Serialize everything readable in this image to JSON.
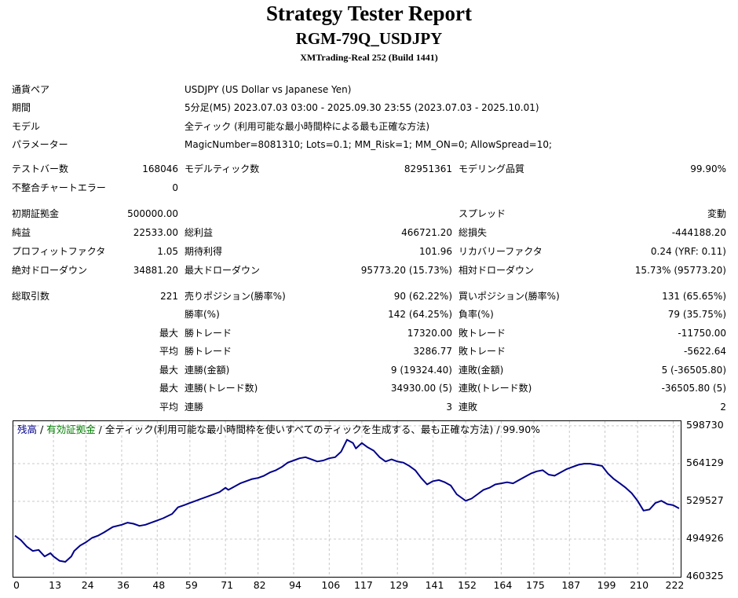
{
  "header": {
    "title": "Strategy Tester Report",
    "ea_name": "RGM-79Q_USDJPY",
    "server": "XMTrading-Real 252 (Build 1441)"
  },
  "settings": {
    "symbol_label": "通貨ペア",
    "symbol_value": "USDJPY (US Dollar vs Japanese Yen)",
    "period_label": "期間",
    "period_value": "5分足(M5) 2023.07.03 03:00 - 2025.09.30 23:55 (2023.07.03 - 2025.10.01)",
    "model_label": "モデル",
    "model_value": "全ティック (利用可能な最小時間枠による最も正確な方法)",
    "params_label": "パラメーター",
    "params_value": "MagicNumber=8081310; Lots=0.1; MM_Risk=1; MM_ON=0; AllowSpread=10;"
  },
  "stats": {
    "bars_label": "テストバー数",
    "bars_value": "168046",
    "ticks_label": "モデルティック数",
    "ticks_value": "82951361",
    "quality_label": "モデリング品質",
    "quality_value": "99.90%",
    "mismatch_label": "不整合チャートエラー",
    "mismatch_value": "0",
    "deposit_label": "初期証拠金",
    "deposit_value": "500000.00",
    "spread_label": "スプレッド",
    "spread_value": "変動",
    "net_label": "純益",
    "net_value": "22533.00",
    "gross_profit_label": "総利益",
    "gross_profit_value": "466721.20",
    "gross_loss_label": "総損失",
    "gross_loss_value": "-444188.20",
    "pf_label": "プロフィットファクタ",
    "pf_value": "1.05",
    "expected_label": "期待利得",
    "expected_value": "101.96",
    "recovery_label": "リカバリーファクタ",
    "recovery_value": "0.24 (YRF: 0.11)",
    "abs_dd_label": "絶対ドローダウン",
    "abs_dd_value": "34881.20",
    "max_dd_label": "最大ドローダウン",
    "max_dd_value": "95773.20 (15.73%)",
    "rel_dd_label": "相対ドローダウン",
    "rel_dd_value": "15.73% (95773.20)",
    "trades_label": "総取引数",
    "trades_value": "221",
    "short_label": "売りポジション(勝率%)",
    "short_value": "90 (62.22%)",
    "long_label": "買いポジション(勝率%)",
    "long_value": "131 (65.65%)",
    "win_rate_label": "勝率(%)",
    "win_rate_value": "142 (64.25%)",
    "loss_rate_label": "負率(%)",
    "loss_rate_value": "79 (35.75%)",
    "max_label": "最大",
    "avg_label": "平均",
    "win_trade_label": "勝トレード",
    "loss_trade_label": "敗トレード",
    "max_win_value": "17320.00",
    "max_loss_value": "-11750.00",
    "avg_win_value": "3286.77",
    "avg_loss_value": "-5622.64",
    "cons_win_amt_label": "連勝(金額)",
    "cons_win_amt_value": "9 (19324.40)",
    "cons_loss_amt_label": "連敗(金額)",
    "cons_loss_amt_value": "5 (-36505.80)",
    "cons_win_cnt_label": "連勝(トレード数)",
    "cons_win_cnt_value": "34930.00 (5)",
    "cons_loss_cnt_label": "連敗(トレード数)",
    "cons_loss_cnt_value": "-36505.80 (5)",
    "avg_cons_win_label": "連勝",
    "avg_cons_win_value": "3",
    "avg_cons_loss_label": "連敗",
    "avg_cons_loss_value": "2"
  },
  "legend": {
    "balance": "残高",
    "sep1": " / ",
    "equity": "有効証拠金",
    "rest": " / 全ティック(利用可能な最小時間枠を使いすべてのティックを生成する、最も正確な方法) / 99.90%"
  },
  "colors": {
    "balance": "#00008b",
    "equity": "#008000",
    "grid": "#c8c8c8"
  },
  "chart_data": {
    "type": "line",
    "series": [
      {
        "name": "残高",
        "x": [
          0,
          2,
          4,
          6,
          8,
          10,
          12,
          13,
          15,
          17,
          19,
          20,
          22,
          24,
          26,
          28,
          30,
          33,
          36,
          38,
          40,
          42,
          44,
          46,
          48,
          50,
          53,
          55,
          57,
          59,
          61,
          63,
          65,
          67,
          69,
          71,
          72,
          74,
          76,
          78,
          80,
          82,
          84,
          86,
          88,
          90,
          92,
          94,
          96,
          98,
          100,
          102,
          104,
          106,
          108,
          110,
          112,
          114,
          115,
          117,
          119,
          121,
          123,
          125,
          127,
          129,
          131,
          133,
          135,
          137,
          139,
          141,
          143,
          145,
          147,
          149,
          151,
          152,
          154,
          156,
          158,
          160,
          162,
          164,
          166,
          168,
          170,
          172,
          174,
          176,
          178,
          180,
          182,
          184,
          186,
          188,
          190,
          192,
          194,
          196,
          198,
          200,
          202,
          204,
          206,
          208,
          210,
          212,
          214,
          216,
          218,
          220,
          222,
          224
        ],
        "values": [
          498000,
          494000,
          488000,
          484000,
          485000,
          479000,
          482000,
          479000,
          475000,
          474000,
          479000,
          484000,
          489000,
          492000,
          496000,
          498000,
          501000,
          506000,
          508000,
          510000,
          509000,
          507000,
          508000,
          510000,
          512000,
          514000,
          518000,
          524000,
          526000,
          528000,
          530000,
          532000,
          534000,
          536000,
          538000,
          542000,
          540000,
          543000,
          546000,
          548000,
          550000,
          551000,
          553000,
          556000,
          558000,
          561000,
          565000,
          567000,
          569000,
          570000,
          568000,
          566000,
          567000,
          569000,
          570000,
          575000,
          586000,
          583000,
          578000,
          583000,
          579000,
          576000,
          570000,
          566000,
          568000,
          566000,
          565000,
          562000,
          558000,
          551000,
          545000,
          548000,
          549000,
          547000,
          544000,
          536000,
          532000,
          530000,
          532000,
          536000,
          540000,
          542000,
          545000,
          546000,
          547000,
          546000,
          549000,
          552000,
          555000,
          557000,
          558000,
          554000,
          553000,
          556000,
          559000,
          561000,
          563000,
          564000,
          564000,
          563000,
          562000,
          555000,
          550000,
          546000,
          542000,
          537000,
          530000,
          521000,
          522000,
          528000,
          530000,
          527000,
          526000,
          523000
        ]
      }
    ],
    "x_ticks": [
      0,
      13,
      24,
      36,
      48,
      59,
      71,
      82,
      94,
      106,
      117,
      129,
      141,
      152,
      164,
      175,
      187,
      199,
      210,
      222
    ],
    "y_ticks": [
      598730,
      564129,
      529527,
      494926,
      460325
    ],
    "ylim": [
      460325,
      603000
    ],
    "xlim": [
      0,
      224
    ],
    "grid": true
  }
}
